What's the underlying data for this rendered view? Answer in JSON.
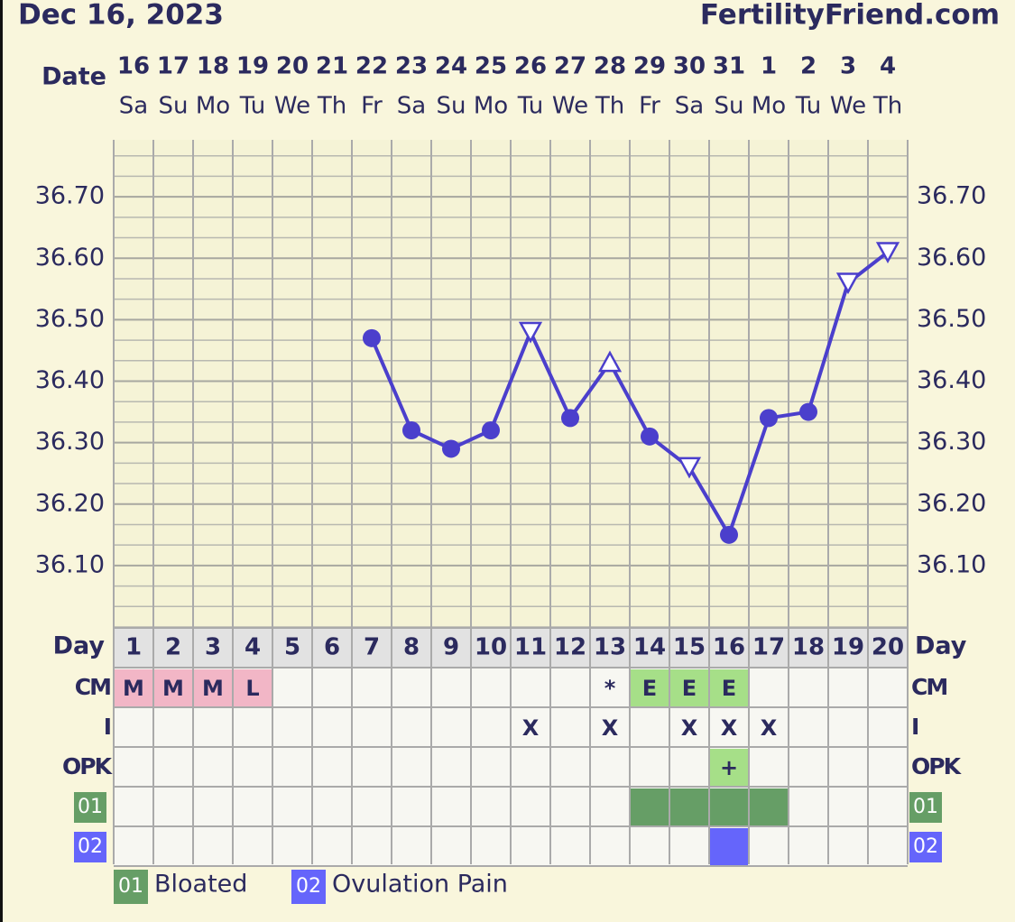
{
  "header": {
    "date": "Dec 16, 2023",
    "site": "FertilityFriend.com"
  },
  "chart_data": {
    "type": "line",
    "x_label": "Date",
    "dates": [
      "16",
      "17",
      "18",
      "19",
      "20",
      "21",
      "22",
      "23",
      "24",
      "25",
      "26",
      "27",
      "28",
      "29",
      "30",
      "31",
      "1",
      "2",
      "3",
      "4"
    ],
    "weekdays": [
      "Sa",
      "Su",
      "Mo",
      "Tu",
      "We",
      "Th",
      "Fr",
      "Sa",
      "Su",
      "Mo",
      "Tu",
      "We",
      "Th",
      "Fr",
      "Sa",
      "Su",
      "Mo",
      "Tu",
      "We",
      "Th"
    ],
    "series": [
      {
        "name": "Temperature",
        "color": "#4b3fcc",
        "values": [
          null,
          null,
          null,
          null,
          null,
          null,
          36.47,
          36.32,
          36.29,
          36.32,
          36.48,
          36.34,
          36.43,
          36.31,
          36.26,
          36.15,
          36.34,
          36.35,
          36.56,
          36.61
        ],
        "markers": [
          null,
          null,
          null,
          null,
          null,
          null,
          "dot",
          "dot",
          "dot",
          "dot",
          "tri-down",
          "dot",
          "tri-up",
          "dot",
          "tri-down",
          "dot",
          "dot",
          "dot",
          "tri-down",
          "tri-down"
        ]
      }
    ],
    "ylim": [
      36.0,
      36.8
    ],
    "yticks": [
      {
        "value": 36.1,
        "label": "36.10"
      },
      {
        "value": 36.2,
        "label": "36.20"
      },
      {
        "value": 36.3,
        "label": "36.30"
      },
      {
        "value": 36.4,
        "label": "36.40"
      },
      {
        "value": 36.5,
        "label": "36.50"
      },
      {
        "value": 36.6,
        "label": "36.60"
      },
      {
        "value": 36.7,
        "label": "36.70"
      }
    ],
    "grid": true
  },
  "table": {
    "day_label": "Day",
    "days": [
      1,
      2,
      3,
      4,
      5,
      6,
      7,
      8,
      9,
      10,
      11,
      12,
      13,
      14,
      15,
      16,
      17,
      18,
      19,
      20
    ],
    "rows": [
      {
        "label": "CM",
        "values": [
          "M",
          "M",
          "M",
          "L",
          null,
          null,
          null,
          null,
          null,
          null,
          null,
          null,
          "*",
          "E",
          "E",
          "E",
          null,
          null,
          null,
          null
        ],
        "colors": [
          "#f2b6c6",
          "#f2b6c6",
          "#f2b6c6",
          "#f2b6c6",
          null,
          null,
          null,
          null,
          null,
          null,
          null,
          null,
          null,
          "#a6df88",
          "#a6df88",
          "#a6df88",
          null,
          null,
          null,
          null
        ]
      },
      {
        "label": "I",
        "values": [
          null,
          null,
          null,
          null,
          null,
          null,
          null,
          null,
          null,
          null,
          "X",
          null,
          "X",
          null,
          "X",
          "X",
          "X",
          null,
          null,
          null
        ]
      },
      {
        "label": "OPK",
        "values": [
          null,
          null,
          null,
          null,
          null,
          null,
          null,
          null,
          null,
          null,
          null,
          null,
          null,
          null,
          null,
          "+",
          null,
          null,
          null,
          null
        ],
        "colors": [
          null,
          null,
          null,
          null,
          null,
          null,
          null,
          null,
          null,
          null,
          null,
          null,
          null,
          null,
          null,
          "#a6df88",
          null,
          null,
          null,
          null
        ]
      }
    ],
    "symptoms": [
      {
        "code": "01",
        "name": "Bloated",
        "color": "#669e66",
        "marked": [
          false,
          false,
          false,
          false,
          false,
          false,
          false,
          false,
          false,
          false,
          false,
          false,
          false,
          true,
          true,
          true,
          true,
          false,
          false,
          false
        ]
      },
      {
        "code": "02",
        "name": "Ovulation Pain",
        "color": "#6565fb",
        "marked": [
          false,
          false,
          false,
          false,
          false,
          false,
          false,
          false,
          false,
          false,
          false,
          false,
          false,
          false,
          false,
          true,
          false,
          false,
          false,
          false
        ]
      }
    ]
  }
}
